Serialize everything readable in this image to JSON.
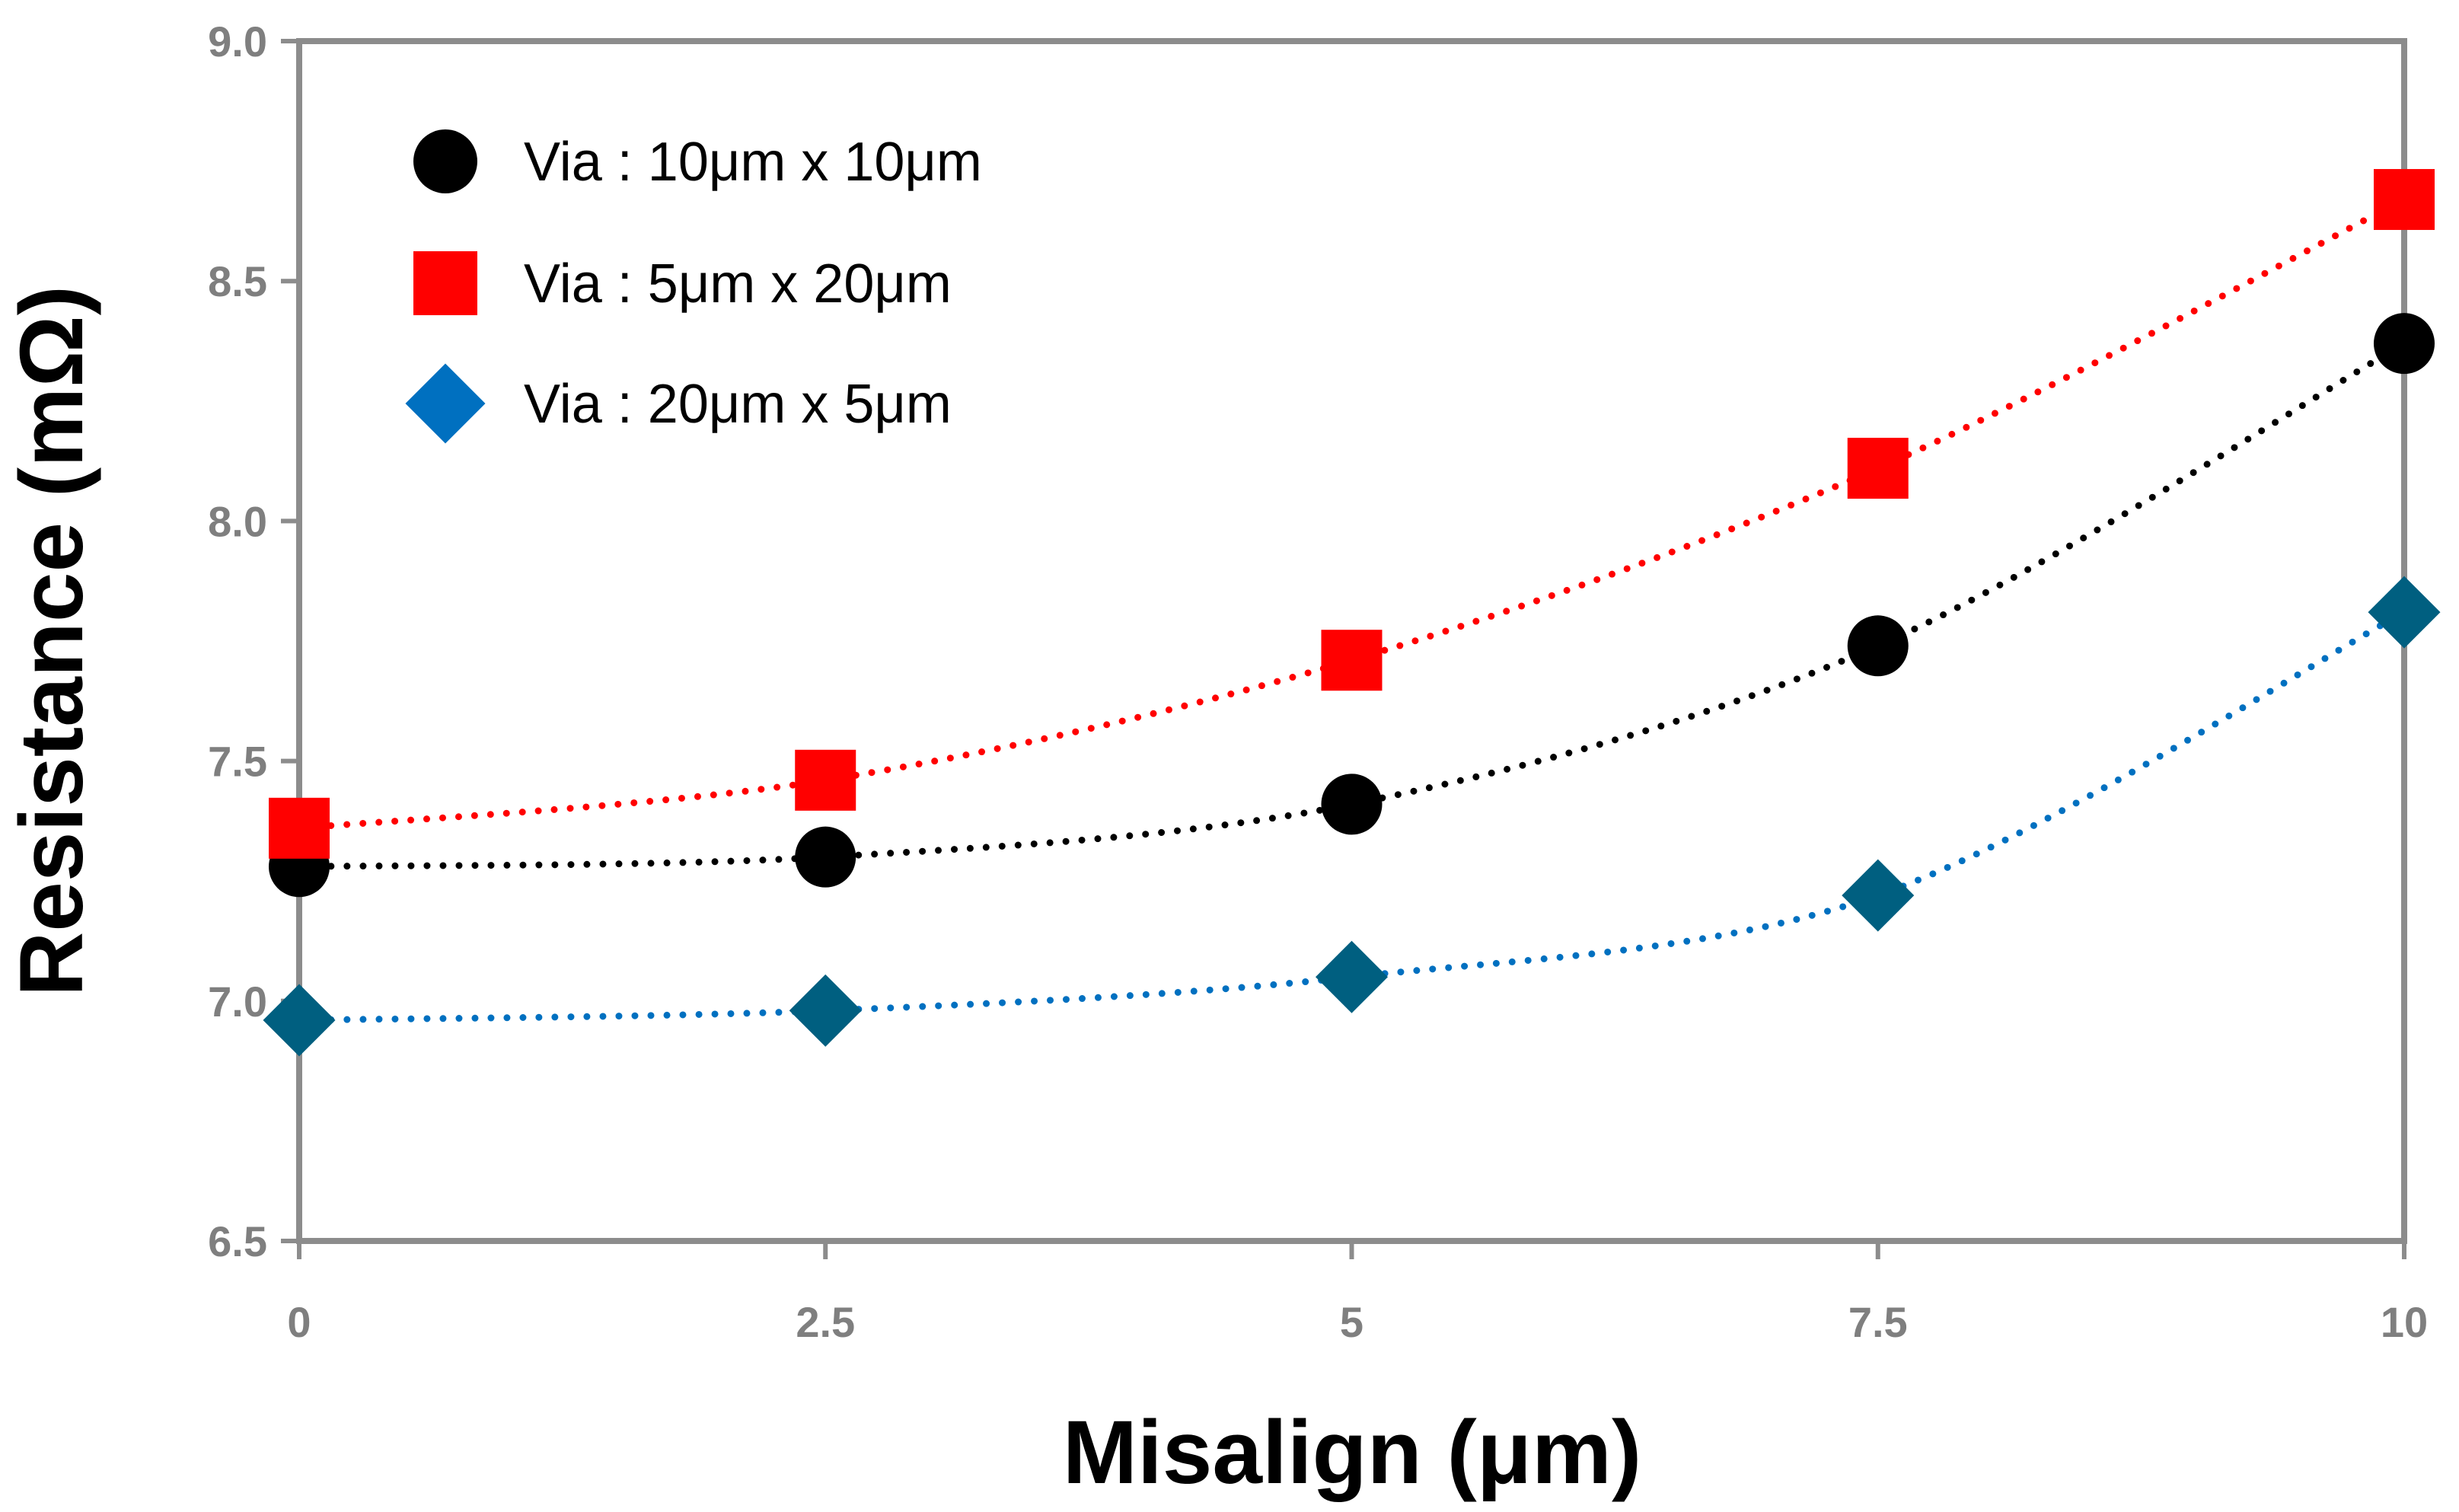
{
  "chart_data": {
    "type": "line",
    "xlabel": "Misalign (μm)",
    "ylabel": "Resistance (mΩ)",
    "x": [
      0,
      2.5,
      5,
      7.5,
      10
    ],
    "x_tick_labels": [
      "0",
      "2.5",
      "5",
      "7.5",
      "10"
    ],
    "xlim": [
      0,
      10
    ],
    "ylim": [
      6.5,
      9.0
    ],
    "y_ticks": [
      6.5,
      7.0,
      7.5,
      8.0,
      8.5,
      9.0
    ],
    "y_tick_labels": [
      "6.5",
      "7.0",
      "7.5",
      "8.0",
      "8.5",
      "9.0"
    ],
    "grid": false,
    "legend_position": "top-left",
    "series": [
      {
        "name": "Via : 10μm x  10μm",
        "marker": "circle",
        "marker_color": "#000000",
        "line_color": "#000000",
        "line_style": "dotted",
        "values": [
          7.28,
          7.3,
          7.41,
          7.74,
          8.37
        ]
      },
      {
        "name": "Via : 5μm x  20μm",
        "marker": "square",
        "marker_color": "#ff0000",
        "line_color": "#ff0000",
        "line_style": "dotted",
        "values": [
          7.36,
          7.46,
          7.71,
          8.11,
          8.67
        ]
      },
      {
        "name": "Via : 20μm x  5μm",
        "marker": "diamond",
        "marker_color": "#005f80",
        "legend_marker_color": "#0070c0",
        "line_color": "#0070c0",
        "line_style": "dotted",
        "values": [
          6.96,
          6.98,
          7.05,
          7.22,
          7.81
        ]
      }
    ]
  }
}
